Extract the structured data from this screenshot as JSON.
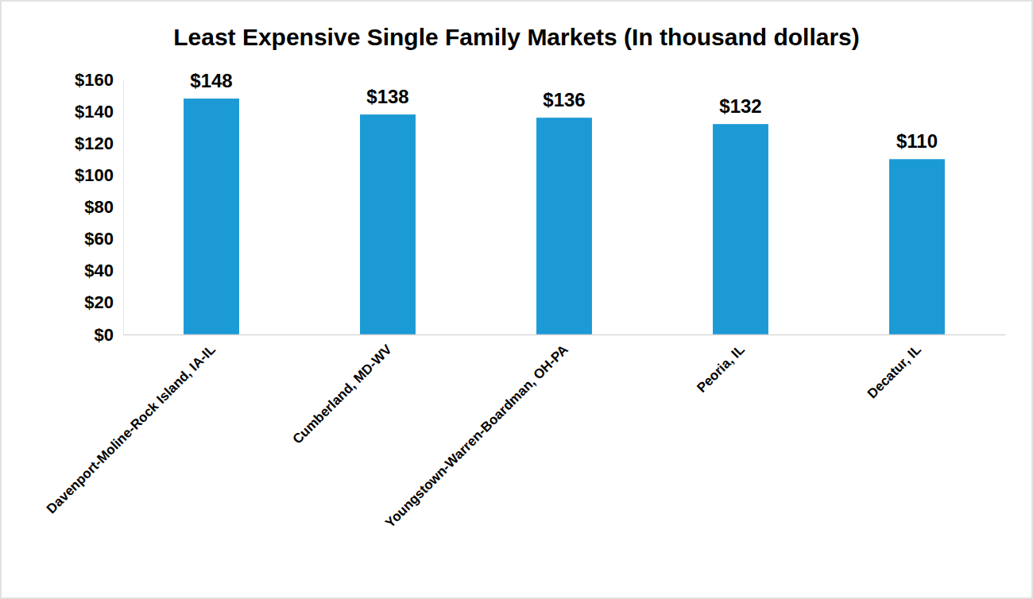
{
  "chart_data": {
    "type": "bar",
    "title": "Least Expensive Single Family Markets (In thousand dollars)",
    "categories": [
      "Davenport-Moline-Rock Island, IA-IL",
      "Cumberland, MD-WV",
      "Youngstown-Warren-Boardman, OH-PA",
      "Peoria, IL",
      "Decatur, IL"
    ],
    "values": [
      148,
      138,
      136,
      132,
      110
    ],
    "value_labels": [
      "$148",
      "$138",
      "$136",
      "$132",
      "$110"
    ],
    "color": "#1c9ad6",
    "ylim": [
      0,
      160
    ],
    "yticks": [
      {
        "value": 0,
        "label": "$0"
      },
      {
        "value": 20,
        "label": "$20"
      },
      {
        "value": 40,
        "label": "$40"
      },
      {
        "value": 60,
        "label": "$60"
      },
      {
        "value": 80,
        "label": "$80"
      },
      {
        "value": 100,
        "label": "$100"
      },
      {
        "value": 120,
        "label": "$120"
      },
      {
        "value": 140,
        "label": "$140"
      },
      {
        "value": 160,
        "label": "$160"
      }
    ],
    "grid": false,
    "data_labels": true
  }
}
